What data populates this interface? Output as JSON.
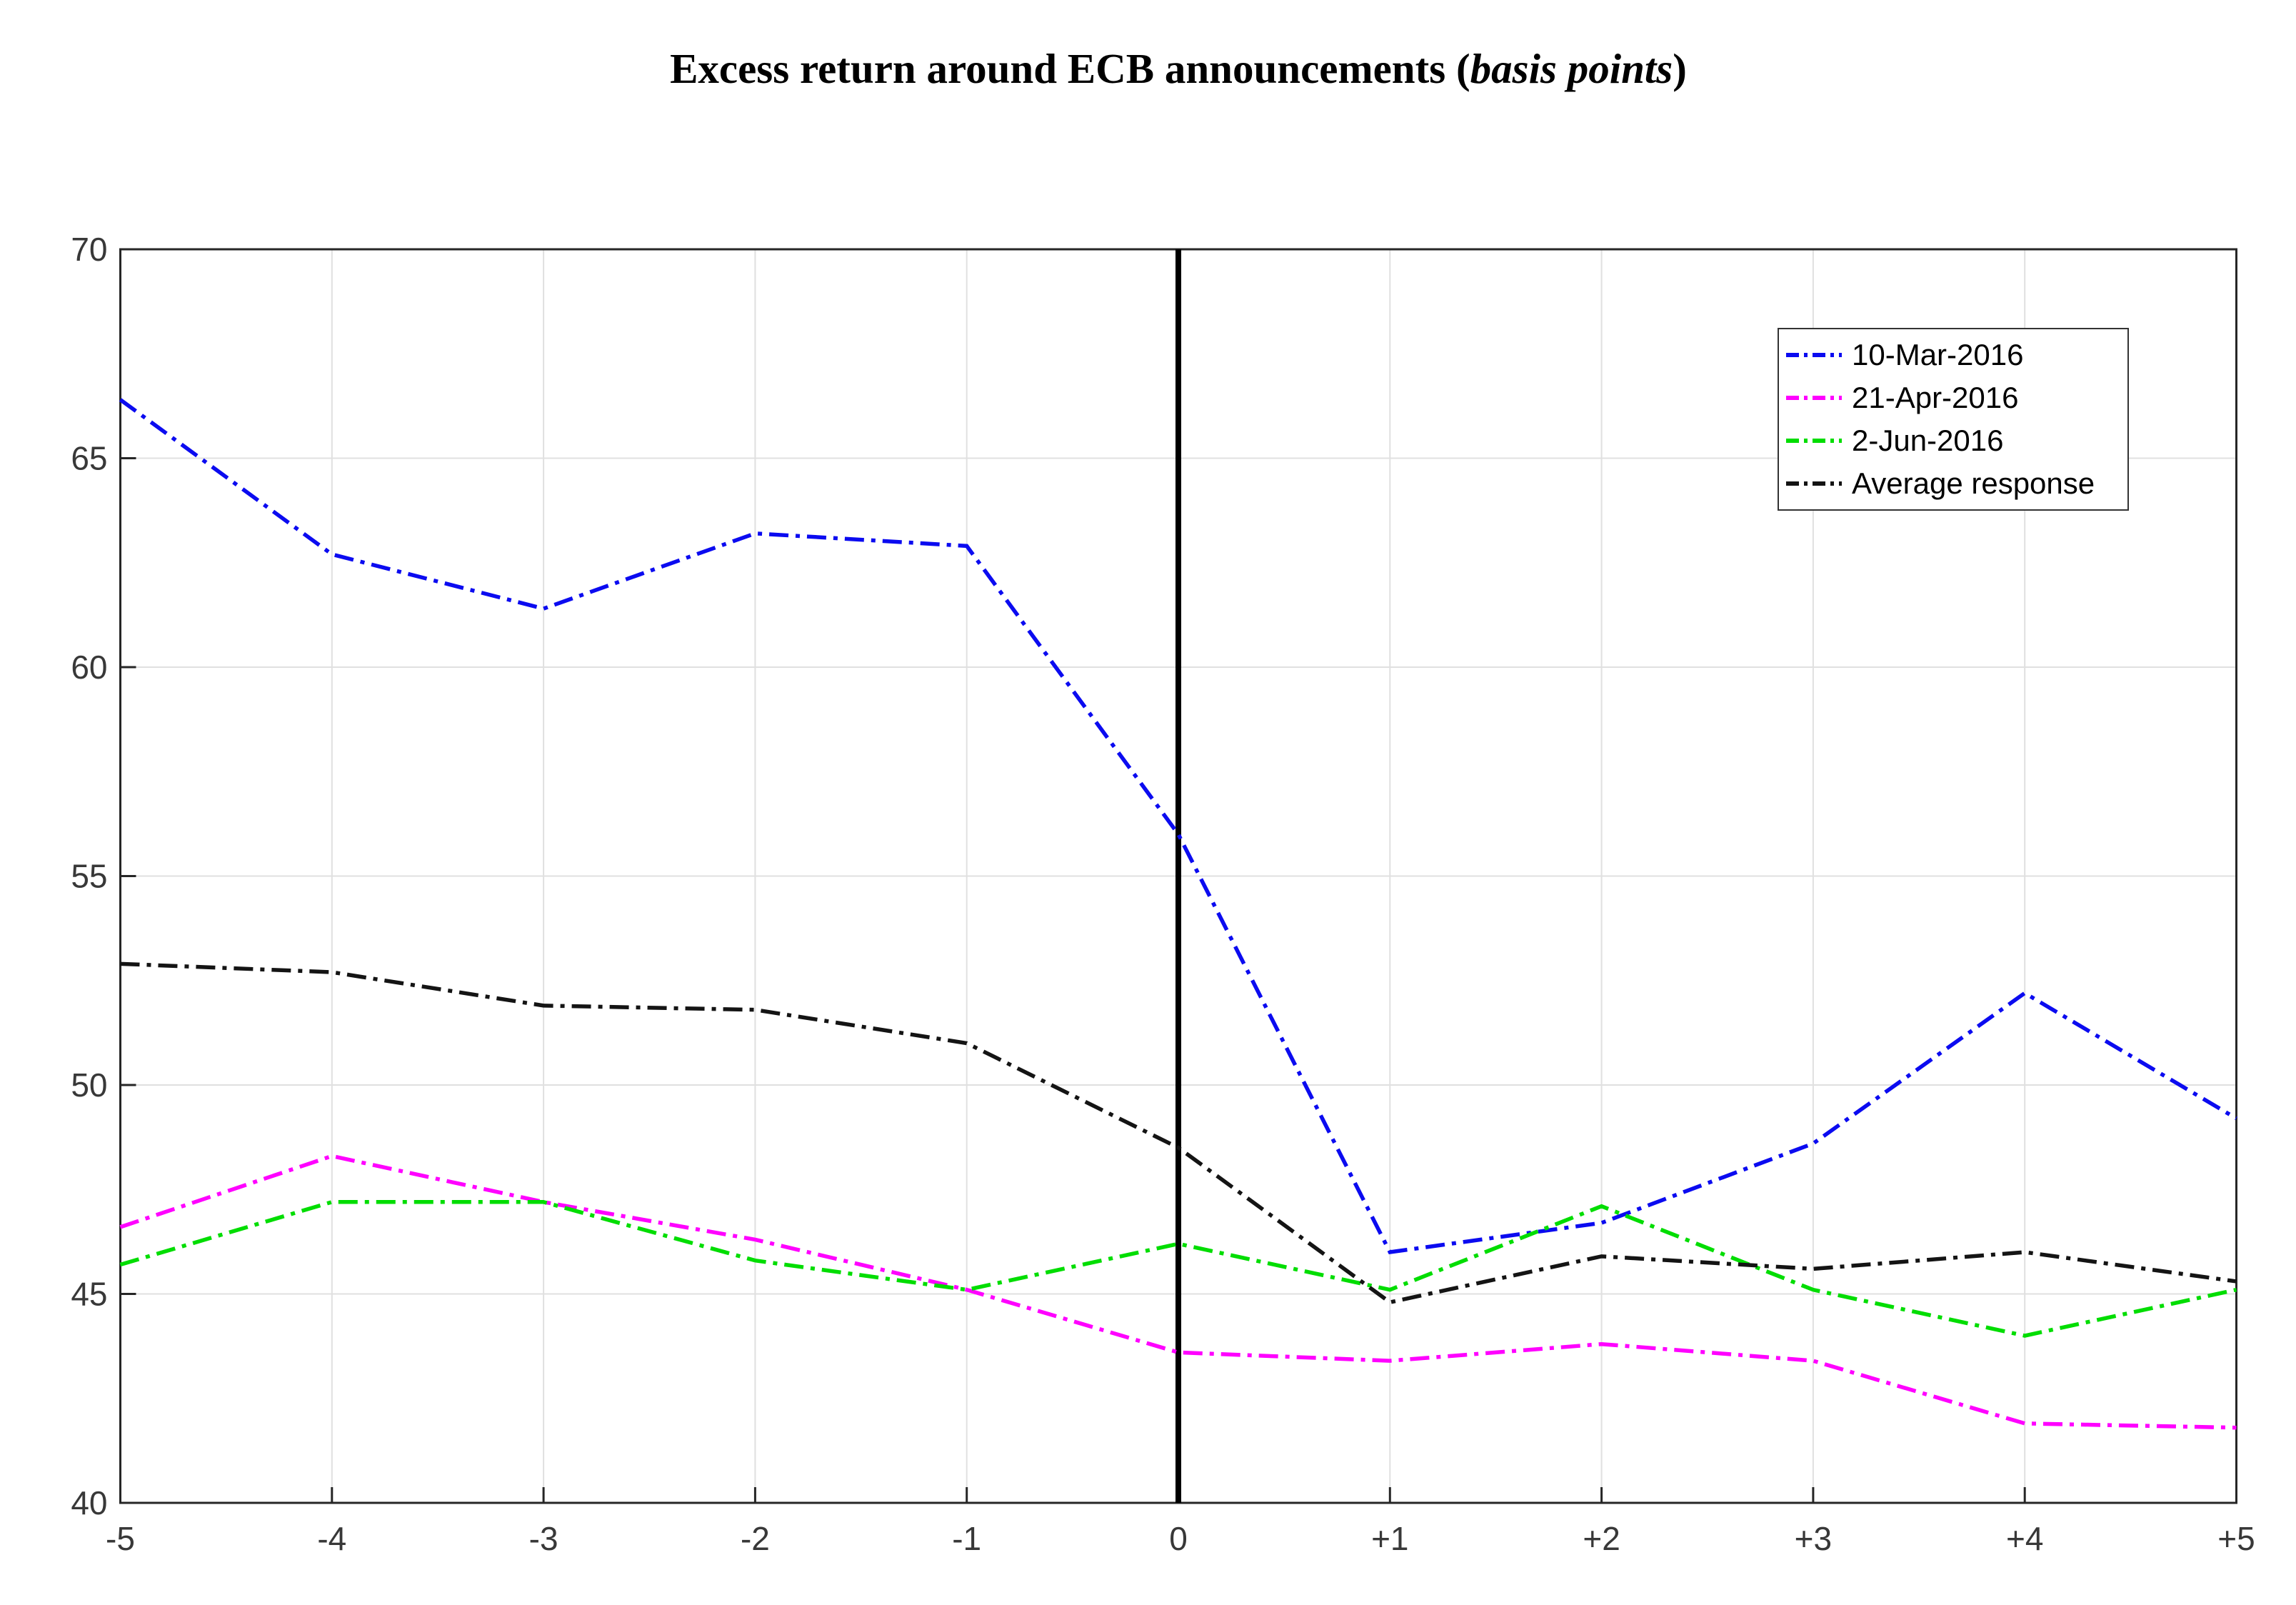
{
  "title": {
    "main": "Excess return around ECB announcements (",
    "italic": "basis points",
    "close": ")"
  },
  "chart_data": {
    "type": "line",
    "title": "Excess return around ECB announcements (basis points)",
    "xlabel": "",
    "ylabel": "",
    "xlim": [
      -5,
      5
    ],
    "ylim": [
      40,
      70
    ],
    "grid": true,
    "legend_position": "upper right",
    "event_line_x": 0,
    "x": [
      -5,
      -4,
      -3,
      -2,
      -1,
      0,
      1,
      2,
      3,
      4,
      5
    ],
    "x_tick_labels": [
      "-5",
      "-4",
      "-3",
      "-2",
      "-1",
      "0",
      "+1",
      "+2",
      "+3",
      "+4",
      "+5"
    ],
    "y_ticks": [
      40,
      45,
      50,
      55,
      60,
      65,
      70
    ],
    "line_style": "dash-dot",
    "series": [
      {
        "name": "10-Mar-2016",
        "color": "#0b0bf0",
        "values": [
          66.4,
          62.7,
          61.4,
          63.2,
          62.9,
          56.0,
          46.0,
          46.7,
          48.6,
          52.2,
          49.2
        ]
      },
      {
        "name": "21-Apr-2016",
        "color": "#ff00ff",
        "values": [
          46.6,
          48.3,
          47.2,
          46.3,
          45.1,
          43.6,
          43.4,
          43.8,
          43.4,
          41.9,
          41.8
        ]
      },
      {
        "name": "2-Jun-2016",
        "color": "#00dd00",
        "values": [
          45.7,
          47.2,
          47.2,
          45.8,
          45.1,
          46.2,
          45.1,
          47.1,
          45.1,
          44.0,
          45.1
        ]
      },
      {
        "name": "Average response",
        "color": "#141414",
        "values": [
          52.9,
          52.7,
          51.9,
          51.8,
          51.0,
          48.5,
          44.8,
          45.9,
          45.6,
          46.0,
          45.3
        ]
      }
    ]
  }
}
